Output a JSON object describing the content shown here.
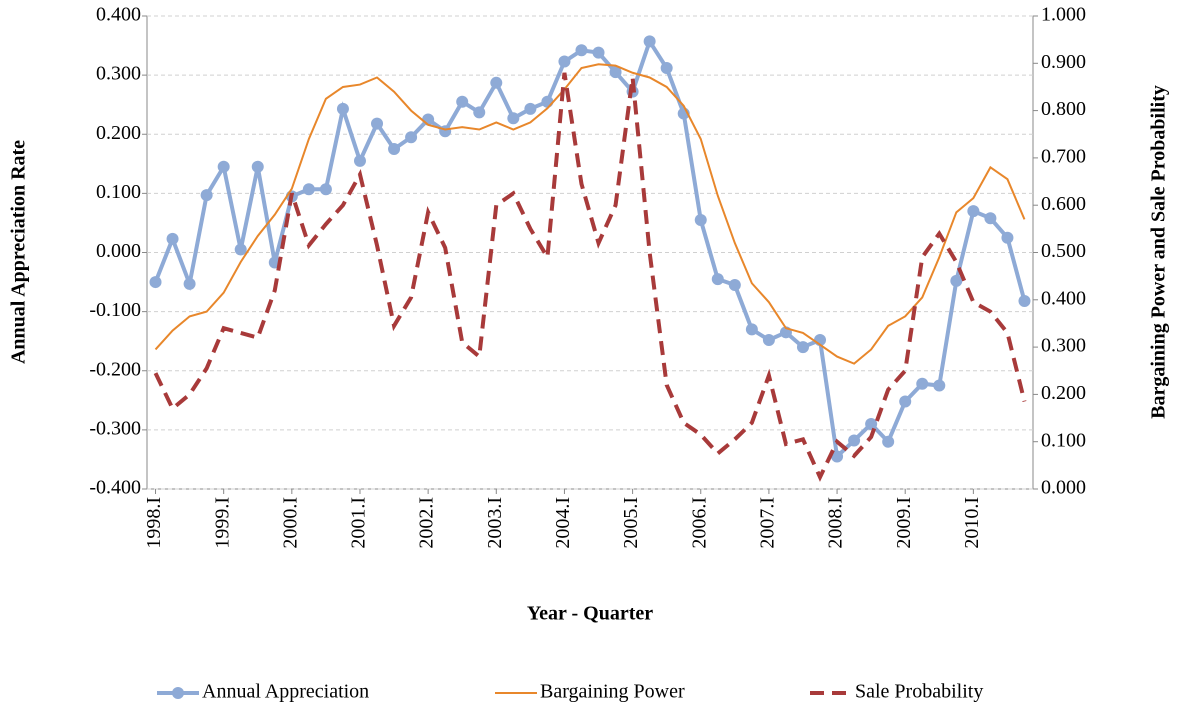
{
  "chart_data": {
    "type": "line",
    "x_label": "Year - Quarter",
    "y_label": "Annual Appreciation Rate",
    "y2_label": "Bargaining Power and Sale Probability",
    "categories": [
      "1998.I",
      null,
      null,
      null,
      "1999.I",
      null,
      null,
      null,
      "2000.I",
      null,
      null,
      null,
      "2001.I",
      null,
      null,
      null,
      "2002.I",
      null,
      null,
      null,
      "2003.I",
      null,
      null,
      null,
      "2004.I",
      null,
      null,
      null,
      "2005.I",
      null,
      null,
      null,
      "2006.I",
      null,
      null,
      null,
      "2007.I",
      null,
      null,
      null,
      "2008.I",
      null,
      null,
      null,
      "2009.I",
      null,
      null,
      null,
      "2010.I",
      null,
      null,
      null
    ],
    "ylim": [
      -0.4,
      0.4
    ],
    "yticks": [
      {
        "value": -0.4,
        "label": "-0.400"
      },
      {
        "value": -0.3,
        "label": "-0.300"
      },
      {
        "value": -0.2,
        "label": "-0.200"
      },
      {
        "value": -0.1,
        "label": "-0.100"
      },
      {
        "value": 0,
        "label": "0.000"
      },
      {
        "value": 0.1,
        "label": "0.100"
      },
      {
        "value": 0.2,
        "label": "0.200"
      },
      {
        "value": 0.3,
        "label": "0.300"
      },
      {
        "value": 0.4,
        "label": "0.400"
      }
    ],
    "y2lim": [
      0,
      1
    ],
    "y2ticks": [
      {
        "value": 0,
        "label": "0.000"
      },
      {
        "value": 0.1,
        "label": "0.100"
      },
      {
        "value": 0.2,
        "label": "0.200"
      },
      {
        "value": 0.3,
        "label": "0.300"
      },
      {
        "value": 0.4,
        "label": "0.400"
      },
      {
        "value": 0.5,
        "label": "0.500"
      },
      {
        "value": 0.6,
        "label": "0.600"
      },
      {
        "value": 0.7,
        "label": "0.700"
      },
      {
        "value": 0.8,
        "label": "0.800"
      },
      {
        "value": 0.9,
        "label": "0.900"
      },
      {
        "value": 1,
        "label": "1.000"
      }
    ],
    "grid": true,
    "legend": "bottom",
    "series": [
      {
        "name": "Annual Appreciation",
        "color": "#8eaad6",
        "marker": "circle",
        "line_style": "solid",
        "values": [
          -0.05,
          0.023,
          -0.053,
          0.097,
          0.145,
          0.005,
          0.145,
          -0.017,
          0.095,
          0.107,
          0.107,
          0.243,
          0.155,
          0.218,
          0.175,
          0.195,
          0.225,
          0.205,
          0.255,
          0.237,
          0.287,
          0.227,
          0.243,
          0.255,
          0.323,
          0.342,
          0.338,
          0.305,
          0.272,
          0.357,
          0.312,
          0.235,
          0.055,
          -0.045,
          -0.055,
          -0.13,
          -0.148,
          -0.135,
          -0.16,
          -0.148,
          -0.345,
          -0.318,
          -0.29,
          -0.32,
          -0.252,
          -0.222,
          -0.225,
          -0.048,
          0.07,
          0.058,
          0.025,
          -0.082
        ]
      },
      {
        "name": "Bargaining Power",
        "color": "#e8872b",
        "axis": "y2",
        "line_style": "solid",
        "values": [
          0.295,
          0.335,
          0.365,
          0.375,
          0.415,
          0.48,
          0.535,
          0.58,
          0.635,
          0.74,
          0.825,
          0.85,
          0.855,
          0.87,
          0.84,
          0.8,
          0.77,
          0.76,
          0.765,
          0.76,
          0.775,
          0.76,
          0.775,
          0.805,
          0.845,
          0.89,
          0.898,
          0.895,
          0.88,
          0.87,
          0.85,
          0.81,
          0.74,
          0.62,
          0.52,
          0.435,
          0.395,
          0.34,
          0.33,
          0.305,
          0.28,
          0.265,
          0.295,
          0.345,
          0.365,
          0.405,
          0.49,
          0.585,
          0.615,
          0.68,
          0.655,
          0.57
        ]
      },
      {
        "name": "Sale Probability",
        "color": "#a83a3a",
        "axis": "y2",
        "line_style": "dashed",
        "values": [
          0.245,
          0.17,
          0.2,
          0.255,
          0.34,
          0.33,
          0.32,
          0.42,
          0.625,
          0.515,
          0.56,
          0.6,
          0.665,
          0.515,
          0.345,
          0.405,
          0.585,
          0.51,
          0.31,
          0.28,
          0.6,
          0.625,
          0.55,
          0.49,
          0.88,
          0.645,
          0.52,
          0.6,
          0.87,
          0.5,
          0.22,
          0.14,
          0.115,
          0.075,
          0.105,
          0.14,
          0.24,
          0.095,
          0.105,
          0.025,
          0.1,
          0.07,
          0.11,
          0.21,
          0.25,
          0.49,
          0.54,
          0.48,
          0.395,
          0.375,
          0.33,
          0.185
        ]
      }
    ]
  }
}
